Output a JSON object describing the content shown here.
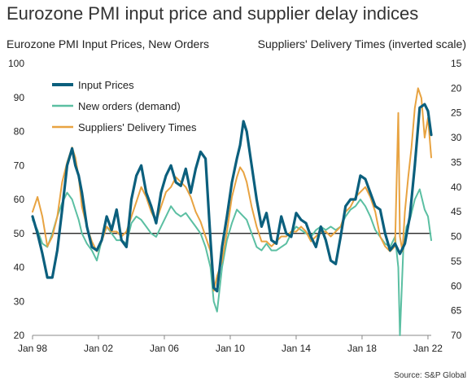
{
  "page": {
    "title": "Eurozone PMI input price and supplier delay indices",
    "left_axis_title": "Eurozone PMI Input Prices, New Orders",
    "right_axis_title": "Suppliers' Delivery Times (inverted scale)",
    "source": "Source: S&P Global"
  },
  "chart_data": {
    "type": "line",
    "title": "Eurozone PMI input price and supplier delay indices",
    "ylabel": "Eurozone PMI Input Prices, New Orders",
    "y2label": "Suppliers' Delivery Times (inverted scale)",
    "ylim": [
      20,
      100
    ],
    "y2lim": [
      70,
      15
    ],
    "y2_inverted": true,
    "xlim": [
      1998.0,
      2022.2
    ],
    "x_ticks": [
      1998,
      2002,
      2006,
      2010,
      2014,
      2018,
      2022
    ],
    "x_tick_labels": [
      "Jan 98",
      "Jan 02",
      "Jan 06",
      "Jan 10",
      "Jan 14",
      "Jan 18",
      "Jan 22"
    ],
    "y_ticks": [
      20,
      30,
      40,
      50,
      60,
      70,
      80,
      90,
      100
    ],
    "y2_ticks": [
      70,
      65,
      60,
      55,
      50,
      45,
      40,
      35,
      30,
      25,
      20,
      15
    ],
    "reference_line": 50,
    "grid": false,
    "legend_position": "top-left",
    "series": [
      {
        "name": "Input Prices",
        "axis": "left",
        "color": "#0b5f7d",
        "x": [
          1998.0,
          1998.3,
          1998.6,
          1998.9,
          1999.2,
          1999.5,
          1999.8,
          2000.1,
          2000.4,
          2000.6,
          2000.8,
          2001.0,
          2001.3,
          2001.6,
          2001.9,
          2002.2,
          2002.5,
          2002.8,
          2003.1,
          2003.4,
          2003.7,
          2004.0,
          2004.3,
          2004.6,
          2004.9,
          2005.2,
          2005.5,
          2005.8,
          2006.1,
          2006.4,
          2006.7,
          2007.0,
          2007.3,
          2007.6,
          2007.9,
          2008.2,
          2008.5,
          2008.8,
          2009.0,
          2009.2,
          2009.5,
          2009.8,
          2010.1,
          2010.4,
          2010.6,
          2010.8,
          2011.0,
          2011.3,
          2011.6,
          2011.9,
          2012.2,
          2012.5,
          2012.8,
          2013.1,
          2013.4,
          2013.7,
          2014.0,
          2014.3,
          2014.6,
          2014.9,
          2015.2,
          2015.5,
          2015.8,
          2016.1,
          2016.4,
          2016.7,
          2017.0,
          2017.3,
          2017.6,
          2017.9,
          2018.2,
          2018.5,
          2018.8,
          2019.1,
          2019.4,
          2019.7,
          2020.0,
          2020.3,
          2020.6,
          2020.9,
          2021.2,
          2021.5,
          2021.8,
          2022.0,
          2022.2
        ],
        "y": [
          55,
          50,
          44,
          37,
          37,
          45,
          57,
          70,
          75,
          70,
          67,
          62,
          52,
          46,
          45,
          48,
          55,
          51,
          57,
          48,
          46,
          60,
          67,
          70,
          62,
          58,
          53,
          62,
          67,
          70,
          65,
          64,
          69,
          62,
          69,
          74,
          72,
          48,
          34,
          33,
          46,
          55,
          65,
          72,
          76,
          83,
          80,
          70,
          60,
          52,
          56,
          48,
          47,
          55,
          50,
          49,
          56,
          54,
          53,
          49,
          46,
          52,
          48,
          42,
          41,
          49,
          58,
          60,
          60,
          67,
          66,
          62,
          58,
          57,
          50,
          45,
          47,
          44,
          47,
          55,
          70,
          87,
          88,
          86,
          79
        ]
      },
      {
        "name": "New orders (demand)",
        "axis": "left",
        "color": "#5bbfa2",
        "x": [
          1998.0,
          1998.3,
          1998.6,
          1998.9,
          1999.2,
          1999.5,
          1999.8,
          2000.1,
          2000.4,
          2000.6,
          2000.8,
          2001.0,
          2001.3,
          2001.6,
          2001.9,
          2002.2,
          2002.5,
          2002.8,
          2003.1,
          2003.4,
          2003.7,
          2004.0,
          2004.3,
          2004.6,
          2004.9,
          2005.2,
          2005.5,
          2005.8,
          2006.1,
          2006.4,
          2006.7,
          2007.0,
          2007.3,
          2007.6,
          2007.9,
          2008.2,
          2008.5,
          2008.8,
          2009.0,
          2009.2,
          2009.5,
          2009.8,
          2010.1,
          2010.4,
          2010.6,
          2010.8,
          2011.0,
          2011.3,
          2011.6,
          2011.9,
          2012.2,
          2012.5,
          2012.8,
          2013.1,
          2013.4,
          2013.7,
          2014.0,
          2014.3,
          2014.6,
          2014.9,
          2015.2,
          2015.5,
          2015.8,
          2016.1,
          2016.4,
          2016.7,
          2017.0,
          2017.3,
          2017.6,
          2017.9,
          2018.2,
          2018.5,
          2018.8,
          2019.1,
          2019.4,
          2019.7,
          2020.0,
          2020.2,
          2020.3,
          2020.5,
          2020.7,
          2020.9,
          2021.2,
          2021.5,
          2021.8,
          2022.0,
          2022.2
        ],
        "y": [
          54,
          51,
          47,
          46,
          50,
          55,
          59,
          62,
          60,
          57,
          54,
          50,
          47,
          45,
          42,
          48,
          52,
          50,
          48,
          48,
          47,
          53,
          55,
          54,
          52,
          50,
          49,
          52,
          55,
          58,
          56,
          55,
          56,
          54,
          52,
          50,
          46,
          40,
          30,
          27,
          40,
          48,
          53,
          57,
          56,
          55,
          54,
          50,
          46,
          45,
          47,
          45,
          45,
          46,
          47,
          50,
          52,
          51,
          50,
          49,
          51,
          52,
          51,
          52,
          51,
          52,
          55,
          57,
          58,
          60,
          58,
          55,
          51,
          49,
          47,
          46,
          49,
          40,
          20,
          45,
          52,
          54,
          60,
          63,
          57,
          55,
          48
        ]
      },
      {
        "name": "Suppliers' Delivery Times",
        "axis": "right",
        "color": "#e8a341",
        "x": [
          1998.0,
          1998.3,
          1998.6,
          1998.9,
          1999.2,
          1999.5,
          1999.8,
          2000.1,
          2000.4,
          2000.6,
          2000.8,
          2001.0,
          2001.3,
          2001.6,
          2001.9,
          2002.2,
          2002.5,
          2002.8,
          2003.1,
          2003.4,
          2003.7,
          2004.0,
          2004.3,
          2004.6,
          2004.9,
          2005.2,
          2005.5,
          2005.8,
          2006.1,
          2006.4,
          2006.7,
          2007.0,
          2007.3,
          2007.6,
          2007.9,
          2008.2,
          2008.5,
          2008.8,
          2009.0,
          2009.2,
          2009.5,
          2009.8,
          2010.1,
          2010.4,
          2010.6,
          2010.8,
          2011.0,
          2011.3,
          2011.6,
          2011.9,
          2012.2,
          2012.5,
          2012.8,
          2013.1,
          2013.4,
          2013.7,
          2014.0,
          2014.3,
          2014.6,
          2014.9,
          2015.2,
          2015.5,
          2015.8,
          2016.1,
          2016.4,
          2016.7,
          2017.0,
          2017.3,
          2017.6,
          2017.9,
          2018.2,
          2018.5,
          2018.8,
          2019.1,
          2019.4,
          2019.7,
          2020.0,
          2020.2,
          2020.3,
          2020.45,
          2020.6,
          2020.8,
          2021.0,
          2021.2,
          2021.4,
          2021.6,
          2021.8,
          2022.0,
          2022.2
        ],
        "y": [
          45,
          42,
          46,
          52,
          50,
          46,
          39,
          35,
          32,
          34,
          38,
          44,
          48,
          51,
          53,
          51,
          48,
          49,
          49,
          50,
          49,
          46,
          43,
          40,
          42,
          45,
          47,
          44,
          41,
          40,
          38,
          39,
          40,
          42,
          45,
          47,
          50,
          53,
          61,
          58,
          55,
          49,
          42,
          38,
          36,
          37,
          39,
          44,
          48,
          51,
          51,
          52,
          51,
          50,
          50,
          49,
          49,
          48,
          49,
          51,
          50,
          49,
          49,
          50,
          49,
          48,
          45,
          44,
          42,
          41,
          40,
          42,
          45,
          50,
          52,
          53,
          52,
          25,
          50,
          53,
          45,
          38,
          32,
          24,
          20,
          22,
          30,
          26,
          34
        ]
      }
    ]
  }
}
